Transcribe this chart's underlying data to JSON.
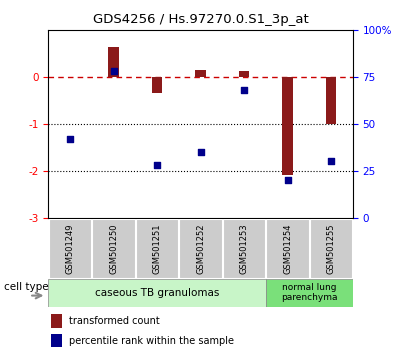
{
  "title": "GDS4256 / Hs.97270.0.S1_3p_at",
  "samples": [
    "GSM501249",
    "GSM501250",
    "GSM501251",
    "GSM501252",
    "GSM501253",
    "GSM501254",
    "GSM501255"
  ],
  "transformed_count": [
    0.0,
    0.65,
    -0.35,
    0.15,
    0.13,
    -2.1,
    -1.0
  ],
  "percentile_rank": [
    42,
    78,
    28,
    35,
    68,
    20,
    30
  ],
  "ylim_left": [
    -3,
    1
  ],
  "ylim_right": [
    0,
    100
  ],
  "bar_color": "#8b1a1a",
  "dot_color": "#00008b",
  "dashed_line_color": "#cc0000",
  "legend_bar_label": "transformed count",
  "legend_dot_label": "percentile rank within the sample",
  "background_color": "#ffffff",
  "cell_type_1_label": "caseous TB granulomas",
  "cell_type_1_color": "#c8f5c8",
  "cell_type_2_label": "normal lung\nparenchyma",
  "cell_type_2_color": "#7ae07a",
  "sample_box_color": "#cccccc",
  "sample_box_edge": "#999999"
}
